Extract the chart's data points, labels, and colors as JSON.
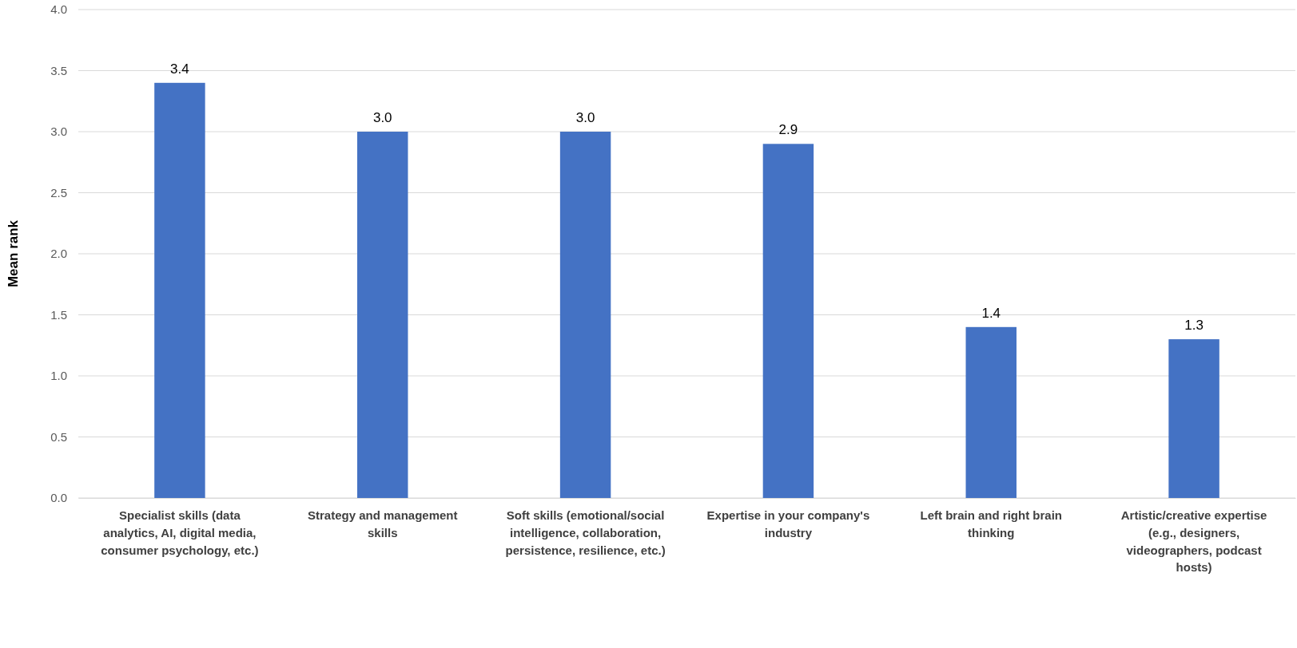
{
  "chart_data": {
    "type": "bar",
    "ylabel": "Mean rank",
    "categories": [
      "Specialist skills (data analytics, AI, digital media, consumer psychology, etc.)",
      "Strategy and management skills",
      "Soft skills (emotional/social intelligence, collaboration, persistence, resilience, etc.)",
      "Expertise in your company's industry",
      "Left brain and right brain thinking",
      "Artistic/creative expertise (e.g., designers, videographers, podcast hosts)"
    ],
    "values": [
      3.4,
      3.0,
      3.0,
      2.9,
      1.4,
      1.3
    ],
    "value_labels": [
      "3.4",
      "3.0",
      "3.0",
      "2.9",
      "1.4",
      "1.3"
    ],
    "color": "#4472c4",
    "ylim": [
      0,
      4
    ],
    "yticks": [
      {
        "value": 0,
        "label": "0.0"
      },
      {
        "value": 0.5,
        "label": "0.5"
      },
      {
        "value": 1,
        "label": "1.0"
      },
      {
        "value": 1.5,
        "label": "1.5"
      },
      {
        "value": 2,
        "label": "2.0"
      },
      {
        "value": 2.5,
        "label": "2.5"
      },
      {
        "value": 3,
        "label": "3.0"
      },
      {
        "value": 3.5,
        "label": "3.5"
      },
      {
        "value": 4,
        "label": "4.0"
      }
    ],
    "grid": "y"
  }
}
